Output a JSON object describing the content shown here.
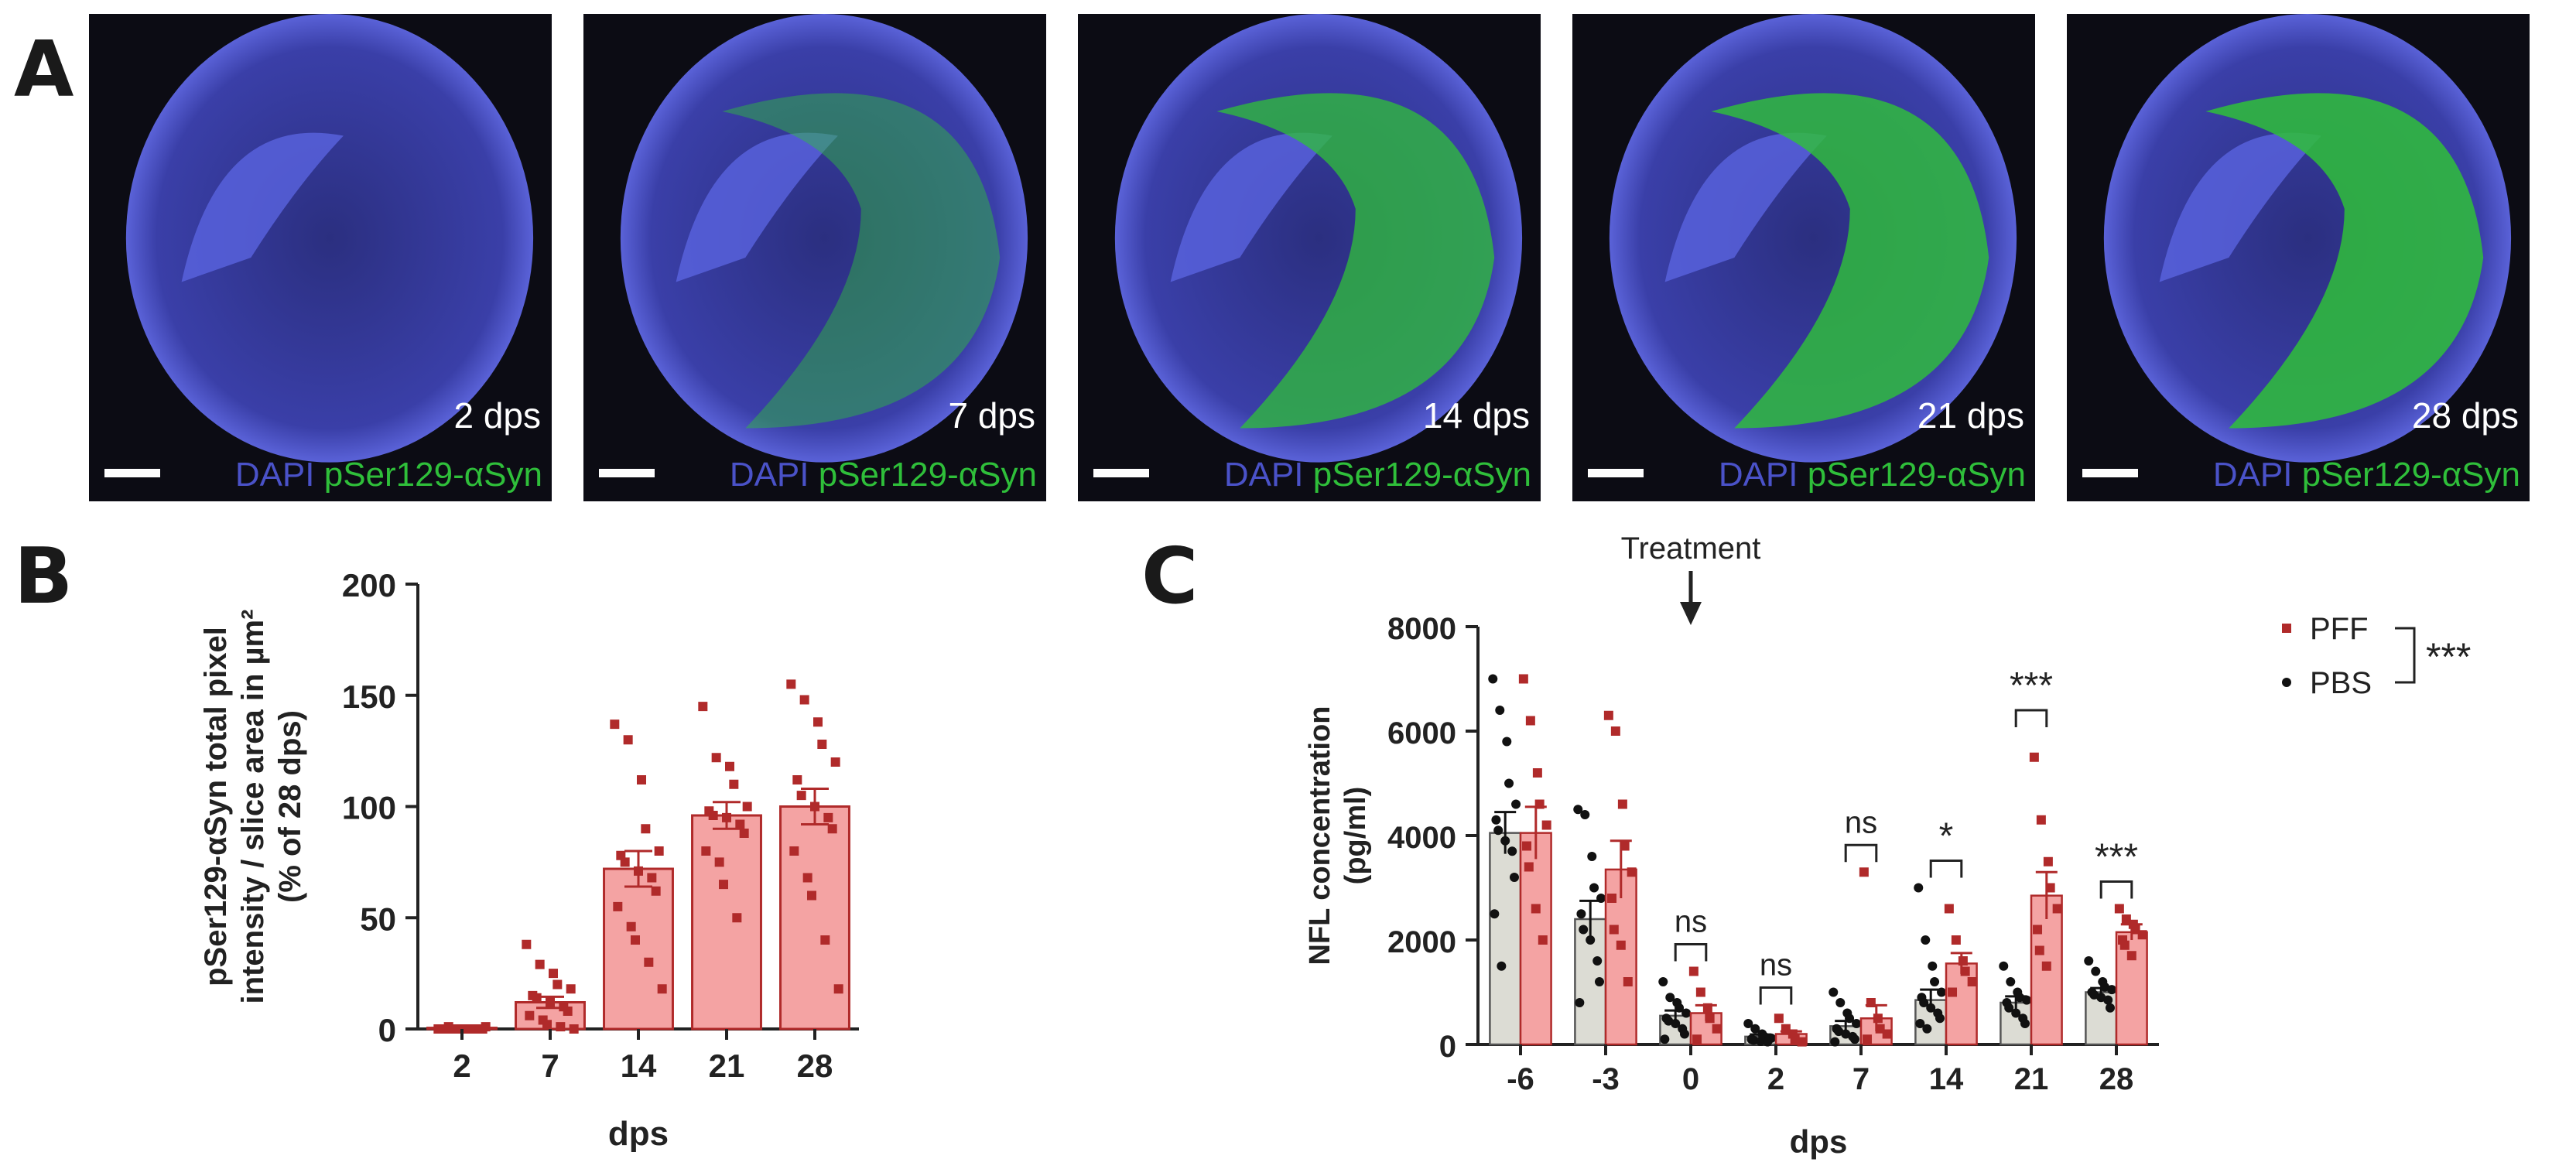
{
  "panel_labels": {
    "a": "A",
    "b": "B",
    "c": "C"
  },
  "micrographs": [
    {
      "timepoint": "2 dps",
      "stain_nuclear": "DAPI",
      "stain_marker": "pSer129-αSyn",
      "green_level": 0.0
    },
    {
      "timepoint": "7 dps",
      "stain_nuclear": "DAPI",
      "stain_marker": "pSer129-αSyn",
      "green_level": 0.35
    },
    {
      "timepoint": "14 dps",
      "stain_nuclear": "DAPI",
      "stain_marker": "pSer129-αSyn",
      "green_level": 0.85
    },
    {
      "timepoint": "21 dps",
      "stain_nuclear": "DAPI",
      "stain_marker": "pSer129-αSyn",
      "green_level": 0.95
    },
    {
      "timepoint": "28 dps",
      "stain_nuclear": "DAPI",
      "stain_marker": "pSer129-αSyn",
      "green_level": 1.0
    }
  ],
  "colors": {
    "pff_fill": "#f4a3a3",
    "pff_point": "#b02a2a",
    "pbs_fill": "#dcdcd4",
    "pbs_point": "#111111",
    "dapi": "#4a52c8",
    "syn": "#2fbf3a",
    "axis": "#222222"
  },
  "chart_data": [
    {
      "type": "bar",
      "panel": "B",
      "categories": [
        "2",
        "7",
        "14",
        "21",
        "28"
      ],
      "values": [
        0.5,
        12,
        72,
        96,
        100
      ],
      "sem": [
        0.3,
        2.5,
        8,
        6,
        8
      ],
      "points": [
        [
          0,
          0,
          0,
          0,
          0,
          0,
          1,
          0,
          0,
          0,
          0,
          0,
          0,
          0,
          1
        ],
        [
          38,
          29,
          25,
          20,
          18,
          15,
          14,
          12,
          10,
          8,
          6,
          4,
          2,
          1,
          0
        ],
        [
          137,
          130,
          112,
          90,
          80,
          78,
          75,
          71,
          68,
          62,
          55,
          46,
          40,
          30,
          18
        ],
        [
          145,
          122,
          118,
          110,
          100,
          98,
          96,
          95,
          92,
          88,
          80,
          75,
          65,
          50
        ],
        [
          155,
          148,
          138,
          128,
          120,
          112,
          105,
          100,
          95,
          90,
          80,
          68,
          60,
          40,
          18
        ]
      ],
      "xlabel": "dps",
      "ylabel_lines": [
        "pSer129-αSyn total pixel",
        "intensity / slice area in µm²",
        "(% of 28 dps)"
      ],
      "ylim": [
        0,
        200
      ],
      "yticks": [
        "0",
        "50",
        "100",
        "150",
        "200"
      ],
      "grid": false
    },
    {
      "type": "bar",
      "panel": "C",
      "categories": [
        "-6",
        "-3",
        "0",
        "2",
        "7",
        "14",
        "21",
        "28"
      ],
      "series": [
        {
          "name": "PBS",
          "values": [
            4050,
            2400,
            550,
            150,
            350,
            850,
            800,
            1000
          ],
          "sem": [
            400,
            350,
            100,
            40,
            100,
            200,
            120,
            80
          ],
          "points": [
            [
              7000,
              6400,
              5800,
              5000,
              4600,
              4300,
              4100,
              3900,
              3700,
              3200,
              2500,
              1500
            ],
            [
              4500,
              4400,
              3600,
              3000,
              2800,
              2500,
              2200,
              2000,
              1600,
              1200,
              800
            ],
            [
              1200,
              900,
              800,
              700,
              600,
              500,
              450,
              400,
              300,
              200,
              100
            ],
            [
              400,
              300,
              200,
              150,
              120,
              100,
              80,
              60,
              50
            ],
            [
              1000,
              800,
              600,
              500,
              400,
              300,
              250,
              200,
              150,
              100,
              50
            ],
            [
              3000,
              2000,
              1500,
              1200,
              1000,
              900,
              800,
              700,
              600,
              500,
              400,
              300
            ],
            [
              1500,
              1200,
              1000,
              900,
              850,
              800,
              700,
              600,
              500,
              400
            ],
            [
              1600,
              1400,
              1200,
              1100,
              1050,
              1000,
              950,
              900,
              850,
              700
            ]
          ]
        },
        {
          "name": "PFF",
          "values": [
            4050,
            3350,
            600,
            200,
            500,
            1550,
            2850,
            2150
          ],
          "sem": [
            500,
            550,
            150,
            50,
            250,
            200,
            450,
            150
          ],
          "points": [
            [
              7000,
              6200,
              5200,
              4600,
              4200,
              3800,
              3400,
              2600,
              2000
            ],
            [
              6300,
              6000,
              4600,
              3800,
              3300,
              2800,
              2200,
              1900,
              1200
            ],
            [
              1400,
              1000,
              700,
              500,
              300,
              100
            ],
            [
              500,
              300,
              200,
              100,
              50
            ],
            [
              3300,
              800,
              500,
              300,
              200,
              100
            ],
            [
              2600,
              2000,
              1600,
              1400,
              1200,
              1000
            ],
            [
              5500,
              4300,
              3500,
              3000,
              2600,
              2200,
              1800,
              1500
            ],
            [
              2600,
              2400,
              2300,
              2200,
              2100,
              2000,
              1900,
              1700
            ]
          ]
        }
      ],
      "significance": [
        "",
        "",
        "ns",
        "ns",
        "ns",
        "*",
        "***",
        "***"
      ],
      "legend": {
        "entries": [
          "PFF",
          "PBS"
        ],
        "overall": "***",
        "placement": "top-right"
      },
      "annotation": "Treatment",
      "annotation_at": "0",
      "xlabel": "dps",
      "ylabel_lines": [
        "NFL concentration",
        "(pg/ml)"
      ],
      "ylim": [
        0,
        8000
      ],
      "yticks": [
        "0",
        "2000",
        "4000",
        "6000",
        "8000"
      ],
      "grid": false
    }
  ]
}
